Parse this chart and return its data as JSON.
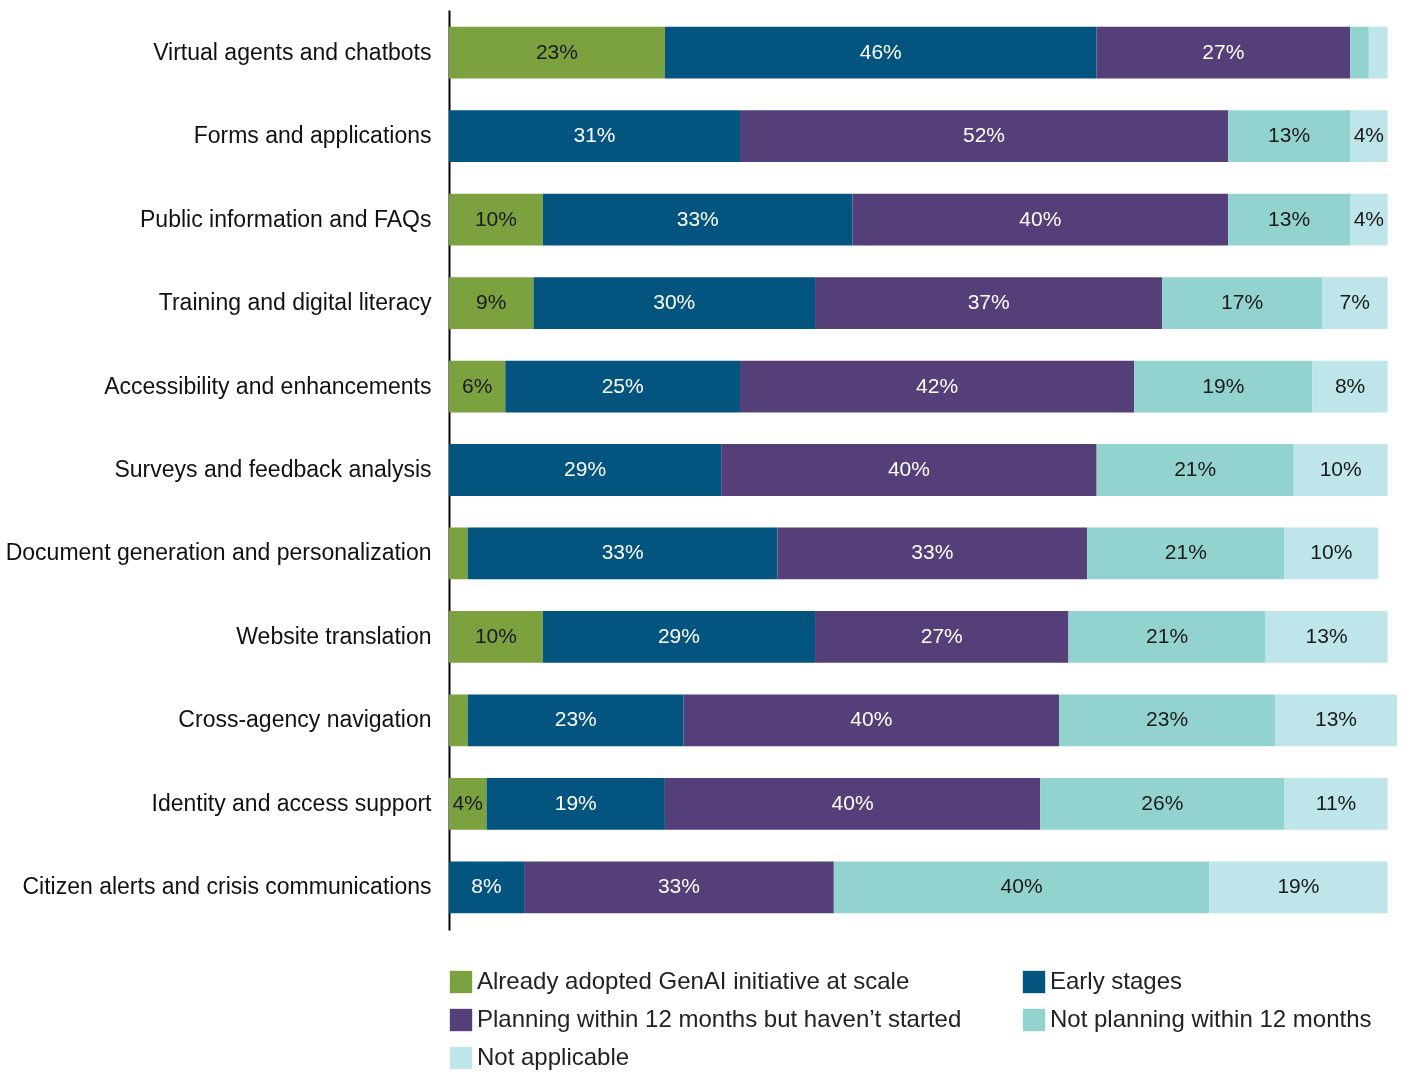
{
  "chart_data": {
    "type": "bar",
    "orientation": "horizontal",
    "stacked": true,
    "legend": "bottom",
    "categories": [
      "Virtual agents and chatbots",
      "Forms and applications",
      "Public information and FAQs",
      "Training and digital literacy",
      "Accessibility and enhancements",
      "Surveys and feedback analysis",
      "Document generation and personalization",
      "Website translation",
      "Cross-agency navigation",
      "Identity and access support",
      "Citizen alerts and crisis communications"
    ],
    "series": [
      {
        "name": "Already adopted GenAI initiative at scale",
        "color": "#7ba23f",
        "values": [
          23,
          0,
          10,
          9,
          6,
          0,
          2,
          10,
          2,
          4,
          0
        ],
        "value_labels": [
          "23%",
          null,
          "10%",
          "9%",
          "6%",
          null,
          null,
          "10%",
          null,
          "4%",
          null
        ]
      },
      {
        "name": "Early stages",
        "color": "#03557f",
        "values": [
          46,
          31,
          33,
          30,
          25,
          29,
          33,
          29,
          23,
          19,
          8
        ],
        "value_labels": [
          "46%",
          "31%",
          "33%",
          "30%",
          "25%",
          "29%",
          "33%",
          "29%",
          "23%",
          "19%",
          "8%"
        ]
      },
      {
        "name": "Planning within 12 months but haven’t started",
        "color": "#553f78",
        "values": [
          27,
          52,
          40,
          37,
          42,
          40,
          33,
          27,
          40,
          40,
          33
        ],
        "value_labels": [
          "27%",
          "52%",
          "40%",
          "37%",
          "42%",
          "40%",
          "33%",
          "27%",
          "40%",
          "40%",
          "33%"
        ]
      },
      {
        "name": "Not planning within 12 months",
        "color": "#93d3cf",
        "values": [
          2,
          13,
          13,
          17,
          19,
          21,
          21,
          21,
          23,
          26,
          40
        ],
        "value_labels": [
          null,
          "13%",
          "13%",
          "17%",
          "19%",
          "21%",
          "21%",
          "21%",
          "23%",
          "26%",
          "40%"
        ]
      },
      {
        "name": "Not applicable",
        "color": "#bde5ea",
        "values": [
          2,
          4,
          4,
          7,
          8,
          10,
          10,
          13,
          13,
          11,
          19
        ],
        "value_labels": [
          null,
          "4%",
          "4%",
          "7%",
          "8%",
          "10%",
          "10%",
          "13%",
          "13%",
          "11%",
          "19%"
        ]
      }
    ]
  }
}
